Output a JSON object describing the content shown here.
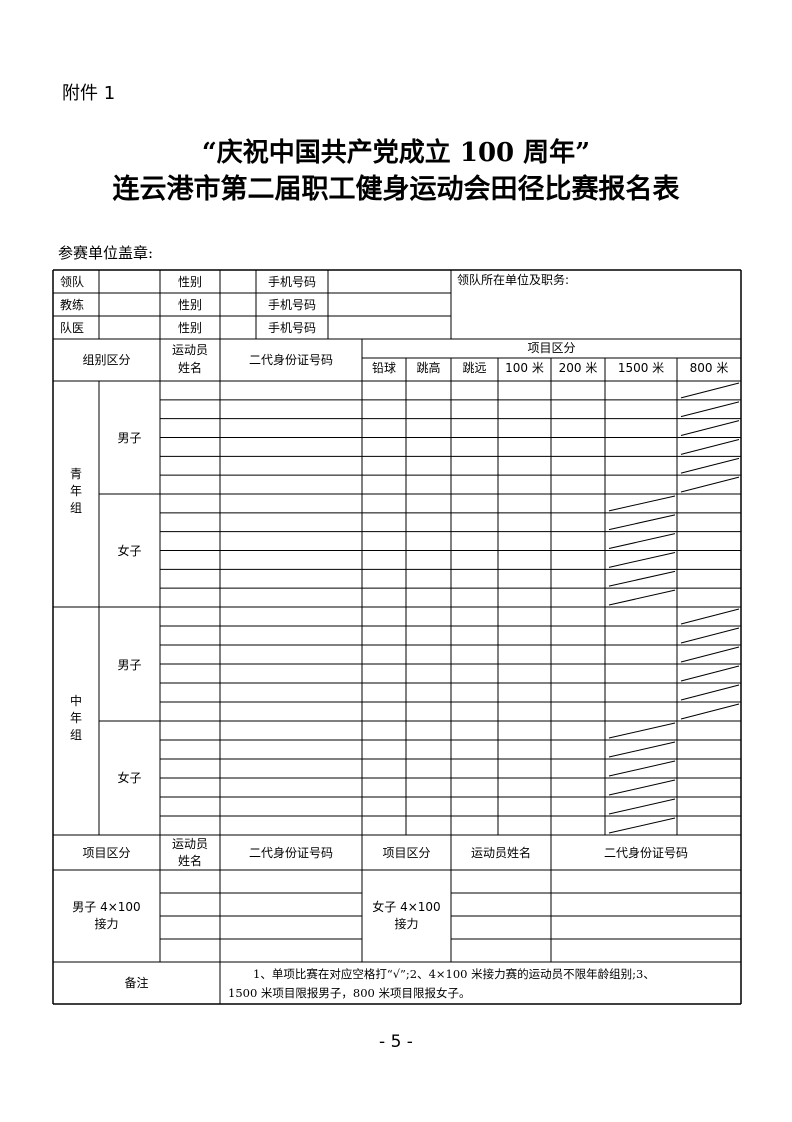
{
  "attachment": "附件 1",
  "title_line1": "“庆祝中国共产党成立 100 周年”",
  "title_line2": "连云港市第二届职工健身运动会田径比赛报名表",
  "seal_label": "参赛单位盖章:",
  "staff": {
    "rows": [
      {
        "role": "领队",
        "gender_label": "性别",
        "phone_label": "手机号码"
      },
      {
        "role": "教练",
        "gender_label": "性别",
        "phone_label": "手机号码"
      },
      {
        "role": "队医",
        "gender_label": "性别",
        "phone_label": "手机号码"
      }
    ],
    "leader_unit_label": "领队所在单位及职务:"
  },
  "header": {
    "group": "组别区分",
    "athlete_name_1": "运动员",
    "athlete_name_2": "姓名",
    "id_number": "二代身份证号码",
    "events_title": "项目区分",
    "events": [
      "铅球",
      "跳高",
      "跳远",
      "100 米",
      "200 米",
      "1500 米",
      "800 米"
    ]
  },
  "groups": [
    {
      "age_chars": [
        "青",
        "年",
        "组"
      ],
      "male": "男子",
      "female": "女子"
    },
    {
      "age_chars": [
        "中",
        "年",
        "组"
      ],
      "male": "男子",
      "female": "女子"
    }
  ],
  "relay": {
    "event_label": "项目区分",
    "name_label_1": "运动员",
    "name_label_2": "姓名",
    "id_label": "二代身份证号码",
    "event_label_2": "项目区分",
    "name_label_full": "运动员姓名",
    "id_label_2": "二代身份证号码",
    "male_1": "男子 4×100",
    "male_2": "接力",
    "female_1": "女子 4×100",
    "female_2": "接力"
  },
  "notes": {
    "label": "备注",
    "line1": "1、单项比赛在对应空格打“√”;2、4×100 米接力赛的运动员不限年龄组别;3、",
    "line2": "1500 米项目限报男子，800 米项目限报女子。"
  },
  "page_number": "- 5 -"
}
